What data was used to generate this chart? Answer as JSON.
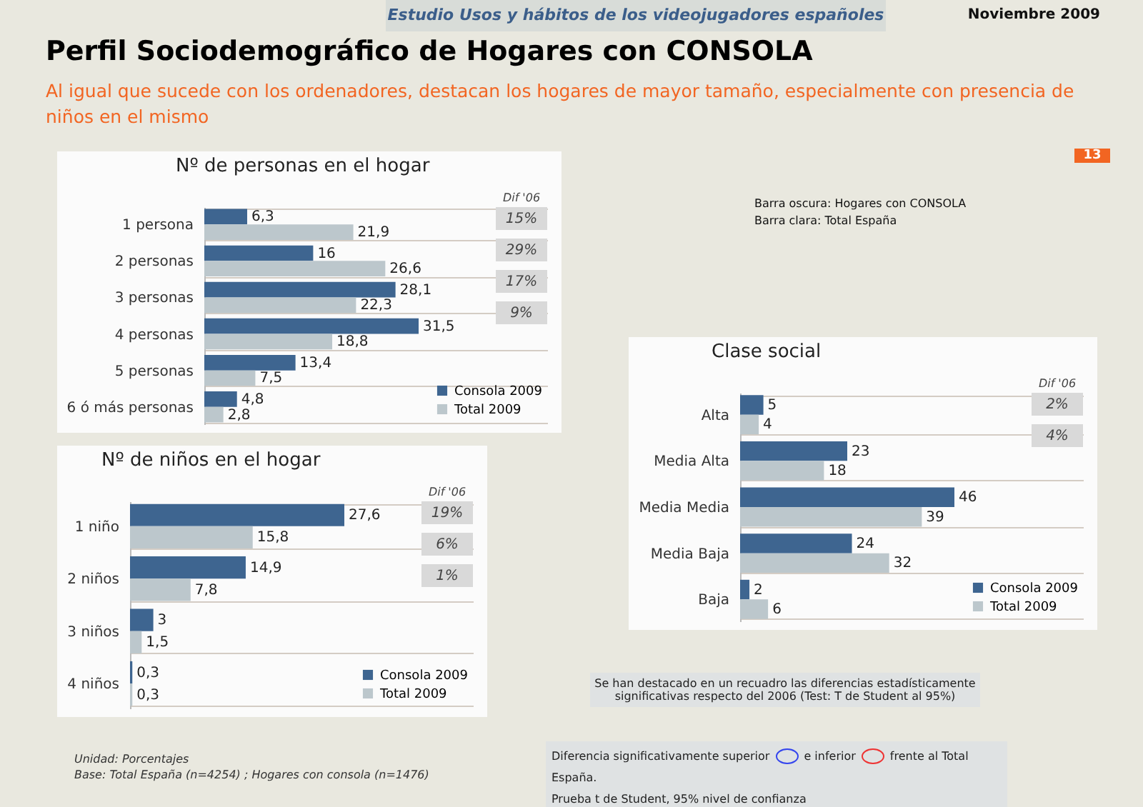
{
  "chart_data": [
    {
      "type": "bar",
      "orientation": "horizontal",
      "title": "Nº de personas en el hogar",
      "categories": [
        "1 persona",
        "2 personas",
        "3 personas",
        "4 personas",
        "5 personas",
        "6 ó más personas"
      ],
      "series": [
        {
          "name": "Consola 2009",
          "color": "#3e6590",
          "values": [
            6.3,
            16,
            28.1,
            31.5,
            13.4,
            4.8
          ],
          "value_labels": [
            "6,3",
            "16",
            "28,1",
            "31,5",
            "13,4",
            "4,8"
          ]
        },
        {
          "name": "Total 2009",
          "color": "#bcc7cc",
          "values": [
            21.9,
            26.6,
            22.3,
            18.8,
            7.5,
            2.8
          ],
          "value_labels": [
            "21,9",
            "26,6",
            "22,3",
            "18,8",
            "7,5",
            "2,8"
          ]
        }
      ],
      "legend": "bottom right",
      "grid": "y",
      "annotations": [
        "Estudio Usos y hábitos de los videojugadores españoles",
        "Noviembre 2009",
        "Perfil Sociodemográfico de Hogares con CONSOLA",
        "Al igual que sucede con los ordenadores, destacan los hogares de mayor tamaño, especialmente con presencia de niños en el mismo",
        "13",
        "Barra oscura: Hogares con CONSOLA",
        "Barra clara: Total España",
        "Se han destacado en un recuadro las diferencias estadísticamente significativas respecto del 2006 (Test: T de Student al 95%)",
        "Diferencia significativamente superior",
        "e inferior",
        "frente al Total España.",
        "Prueba t de Student, 95% nivel de confianza",
        "Unidad: Porcentajes",
        "Base: Total España (n=4254) ; Hogares con consola (n=1476)",
        "Dif '06",
        "15%",
        "29%",
        "17%",
        "9%"
      ]
    },
    {
      "type": "bar",
      "orientation": "horizontal",
      "title": "Nº de niños en el hogar",
      "categories": [
        "1 niño",
        "2 niños",
        "3 niños",
        "4 niños"
      ],
      "series": [
        {
          "name": "Consola 2009",
          "color": "#3e6590",
          "values": [
            27.6,
            14.9,
            3,
            0.3
          ],
          "value_labels": [
            "27,6",
            "14,9",
            "3",
            "0,3"
          ]
        },
        {
          "name": "Total 2009",
          "color": "#bcc7cc",
          "values": [
            15.8,
            7.8,
            1.5,
            0.3
          ],
          "value_labels": [
            "15,8",
            "7,8",
            "1,5",
            "0,3"
          ]
        }
      ],
      "legend": "bottom right",
      "grid": "y",
      "annotations": [
        "Dif '06",
        "19%",
        "6%",
        "1%"
      ]
    },
    {
      "type": "bar",
      "orientation": "horizontal",
      "title": "Clase social",
      "categories": [
        "Alta",
        "Media Alta",
        "Media Media",
        "Media Baja",
        "Baja"
      ],
      "series": [
        {
          "name": "Consola 2009",
          "color": "#3e6590",
          "values": [
            5,
            23,
            46,
            24,
            2
          ],
          "value_labels": [
            "5",
            "23",
            "46",
            "24",
            "2"
          ]
        },
        {
          "name": "Total 2009",
          "color": "#bcc7cc",
          "values": [
            4,
            18,
            39,
            32,
            6
          ],
          "value_labels": [
            "4",
            "18",
            "39",
            "32",
            "6"
          ]
        }
      ],
      "legend": "bottom right",
      "grid": "y",
      "annotations": [
        "Dif '06",
        "2%",
        "4%"
      ]
    }
  ]
}
